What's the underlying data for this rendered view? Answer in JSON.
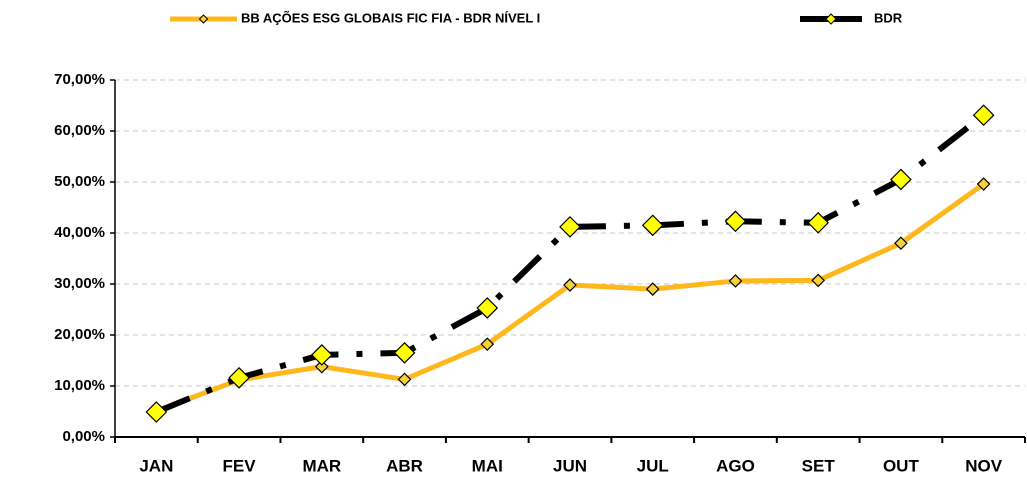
{
  "chart_data": {
    "type": "line",
    "categories": [
      "JAN",
      "FEV",
      "MAR",
      "ABR",
      "MAI",
      "JUN",
      "JUL",
      "AGO",
      "SET",
      "OUT",
      "NOV"
    ],
    "series": [
      {
        "name": "BB AÇÕES ESG GLOBAIS FIC FIA - BDR NÍVEL I",
        "color": "#FFB81C",
        "marker_color": "#F2D43A",
        "values": [
          5.1,
          11.2,
          13.8,
          11.3,
          18.2,
          29.8,
          29.0,
          30.6,
          30.7,
          38.0,
          49.6
        ]
      },
      {
        "name": "BDR",
        "color": "#000000",
        "marker_color": "#FFFF00",
        "dashed": true,
        "values": [
          4.9,
          11.6,
          16.1,
          16.5,
          25.3,
          41.2,
          41.5,
          42.3,
          42.0,
          50.5,
          63.1
        ]
      }
    ],
    "ylim": [
      0,
      70
    ],
    "yticks": [
      {
        "value": 0,
        "label": "0,00%"
      },
      {
        "value": 10,
        "label": "10,00%"
      },
      {
        "value": 20,
        "label": "20,00%"
      },
      {
        "value": 30,
        "label": "30,00%"
      },
      {
        "value": 40,
        "label": "40,00%"
      },
      {
        "value": 50,
        "label": "50,00%"
      },
      {
        "value": 60,
        "label": "60,00%"
      },
      {
        "value": 70,
        "label": "70,00%"
      }
    ],
    "grid": true
  }
}
